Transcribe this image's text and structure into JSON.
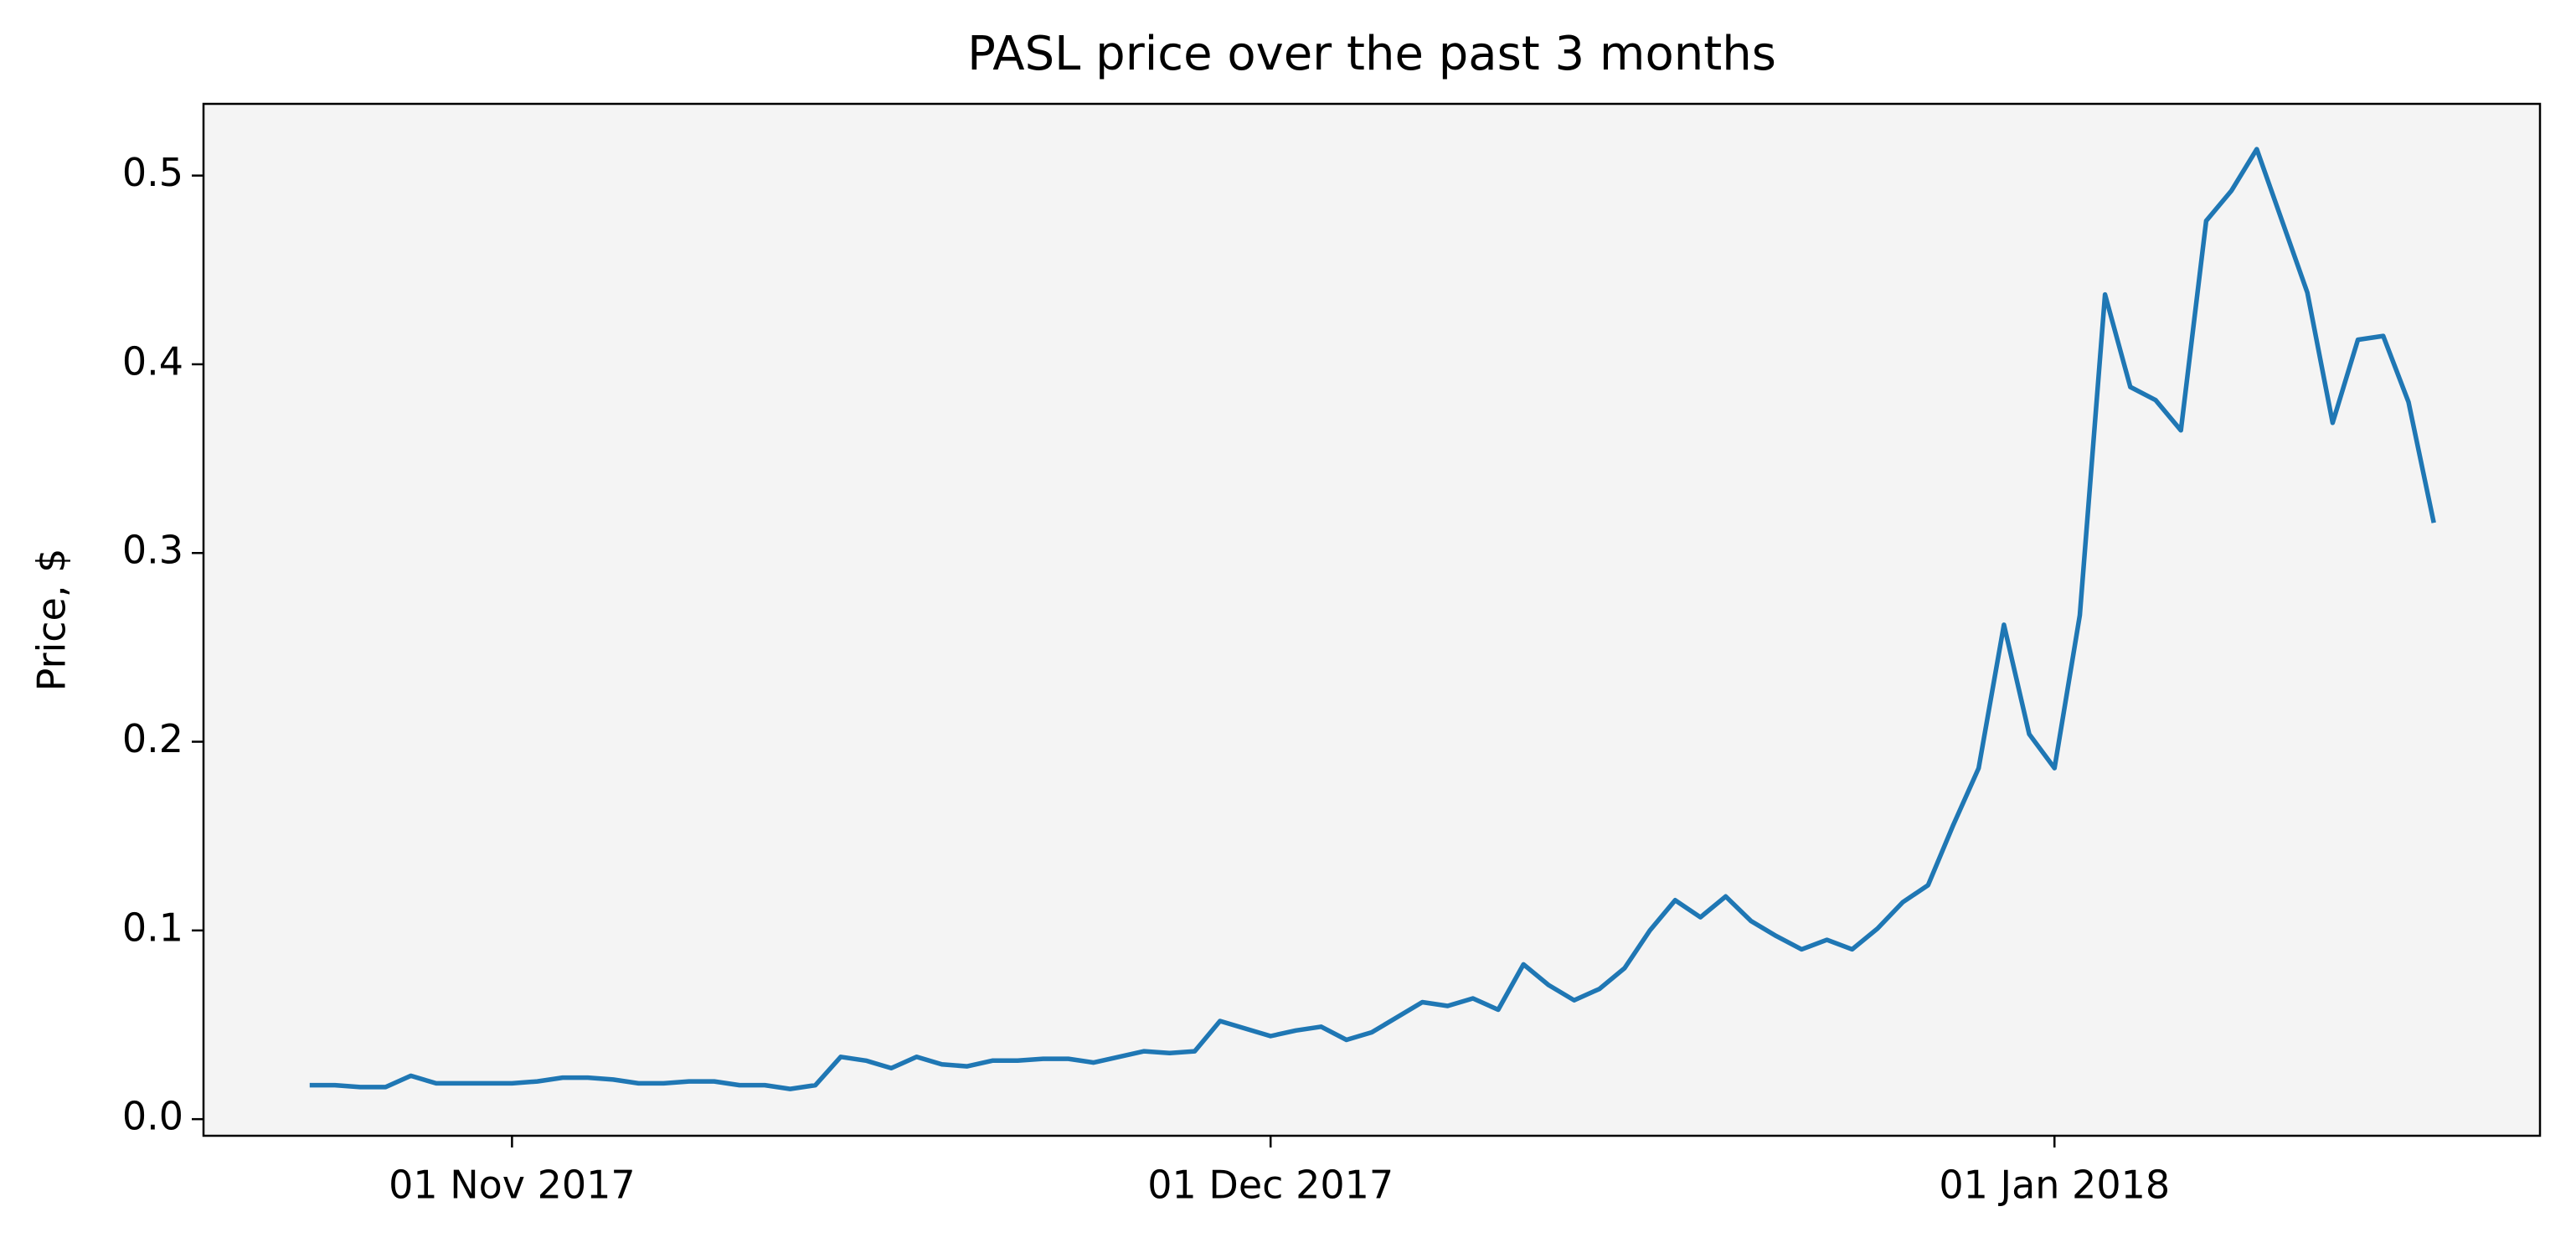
{
  "chart_data": {
    "type": "line",
    "title": "PASL price over the past 3 months",
    "ylabel": "Price, $",
    "x": [
      "2017-10-24",
      "2017-10-25",
      "2017-10-26",
      "2017-10-27",
      "2017-10-28",
      "2017-10-29",
      "2017-10-30",
      "2017-10-31",
      "2017-11-01",
      "2017-11-02",
      "2017-11-03",
      "2017-11-04",
      "2017-11-05",
      "2017-11-06",
      "2017-11-07",
      "2017-11-08",
      "2017-11-09",
      "2017-11-10",
      "2017-11-11",
      "2017-11-12",
      "2017-11-13",
      "2017-11-14",
      "2017-11-15",
      "2017-11-16",
      "2017-11-17",
      "2017-11-18",
      "2017-11-19",
      "2017-11-20",
      "2017-11-21",
      "2017-11-22",
      "2017-11-23",
      "2017-11-24",
      "2017-11-25",
      "2017-11-26",
      "2017-11-27",
      "2017-11-28",
      "2017-11-29",
      "2017-11-30",
      "2017-12-01",
      "2017-12-02",
      "2017-12-03",
      "2017-12-04",
      "2017-12-05",
      "2017-12-06",
      "2017-12-07",
      "2017-12-08",
      "2017-12-09",
      "2017-12-10",
      "2017-12-11",
      "2017-12-12",
      "2017-12-13",
      "2017-12-14",
      "2017-12-15",
      "2017-12-16",
      "2017-12-17",
      "2017-12-18",
      "2017-12-19",
      "2017-12-20",
      "2017-12-21",
      "2017-12-22",
      "2017-12-23",
      "2017-12-24",
      "2017-12-25",
      "2017-12-26",
      "2017-12-27",
      "2017-12-28",
      "2017-12-29",
      "2017-12-30",
      "2017-12-31",
      "2018-01-01",
      "2018-01-02",
      "2018-01-03",
      "2018-01-04",
      "2018-01-05",
      "2018-01-06",
      "2018-01-07",
      "2018-01-08",
      "2018-01-09",
      "2018-01-10",
      "2018-01-11",
      "2018-01-12",
      "2018-01-13",
      "2018-01-14",
      "2018-01-15",
      "2018-01-16"
    ],
    "series": [
      {
        "color": "#1f77b4",
        "values": [
          0.018,
          0.018,
          0.017,
          0.017,
          0.023,
          0.019,
          0.019,
          0.019,
          0.019,
          0.02,
          0.022,
          0.022,
          0.021,
          0.019,
          0.019,
          0.02,
          0.02,
          0.018,
          0.018,
          0.016,
          0.018,
          0.033,
          0.031,
          0.027,
          0.033,
          0.029,
          0.028,
          0.031,
          0.031,
          0.032,
          0.032,
          0.03,
          0.033,
          0.036,
          0.035,
          0.036,
          0.052,
          0.048,
          0.044,
          0.047,
          0.049,
          0.042,
          0.046,
          0.054,
          0.062,
          0.06,
          0.064,
          0.058,
          0.082,
          0.071,
          0.063,
          0.069,
          0.08,
          0.1,
          0.116,
          0.107,
          0.118,
          0.105,
          0.097,
          0.09,
          0.095,
          0.09,
          0.101,
          0.115,
          0.124,
          0.156,
          0.186,
          0.262,
          0.204,
          0.186,
          0.267,
          0.437,
          0.388,
          0.381,
          0.365,
          0.476,
          0.492,
          0.514,
          0.476,
          0.438,
          0.369,
          0.413,
          0.415,
          0.38,
          0.316
        ]
      }
    ],
    "xlim": [
      "2017-10-19T19:12:00Z",
      "2018-01-20T04:48:00Z"
    ],
    "xticks": [
      {
        "value": "2017-11-01",
        "label": "01 Nov 2017"
      },
      {
        "value": "2017-12-01",
        "label": "01 Dec 2017"
      },
      {
        "value": "2018-01-01",
        "label": "01 Jan 2018"
      }
    ],
    "ylim": [
      -0.0088,
      0.538
    ],
    "yticks": [
      0.0,
      0.1,
      0.2,
      0.3,
      0.4,
      0.5
    ],
    "grid": false
  }
}
